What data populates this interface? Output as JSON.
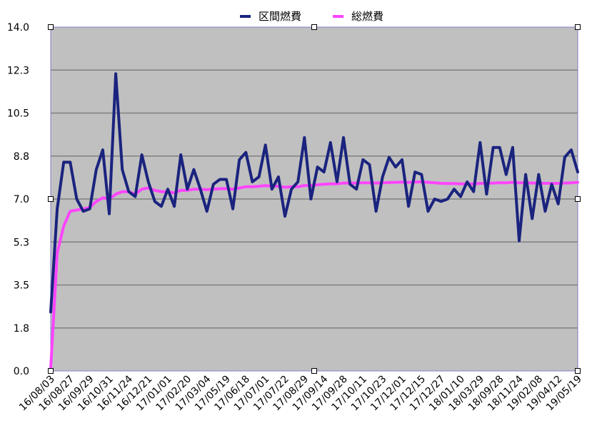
{
  "chart_data": {
    "type": "line",
    "title": "",
    "xlabel": "",
    "ylabel": "",
    "ylim": [
      0,
      14
    ],
    "y_ticks": [
      "0.0",
      "1.8",
      "3.5",
      "5.3",
      "7.0",
      "8.8",
      "10.5",
      "12.3",
      "14.0"
    ],
    "x_tick_labels": [
      "16/08/03",
      "16/08/27",
      "16/09/29",
      "16/10/31",
      "16/11/24",
      "16/12/21",
      "17/01/01",
      "17/02/20",
      "17/03/04",
      "17/05/19",
      "17/06/18",
      "17/07/01",
      "17/07/22",
      "17/08/29",
      "17/09/14",
      "17/09/28",
      "17/10/11",
      "17/10/23",
      "17/12/01",
      "17/12/15",
      "17/12/27",
      "18/01/10",
      "18/03/29",
      "18/09/28",
      "18/11/24",
      "19/02/08",
      "19/04/12",
      "19/05/19"
    ],
    "grid": true,
    "legend_position": "top",
    "colors": {
      "plot_background": "#c0c0c0",
      "gridline": "#808080",
      "axis": "#7f7fcc"
    },
    "series": [
      {
        "name": "区間燃費",
        "color": "#1a237e",
        "values": [
          2.4,
          6.6,
          8.5,
          8.5,
          7.0,
          6.5,
          6.6,
          8.2,
          9.0,
          6.4,
          12.1,
          8.2,
          7.3,
          7.1,
          8.8,
          7.7,
          6.9,
          6.7,
          7.4,
          6.7,
          8.8,
          7.4,
          8.2,
          7.4,
          6.5,
          7.6,
          7.8,
          7.8,
          6.6,
          8.6,
          8.9,
          7.7,
          7.9,
          9.2,
          7.4,
          7.9,
          6.3,
          7.4,
          7.7,
          9.5,
          7.0,
          8.3,
          8.1,
          9.3,
          7.7,
          9.5,
          7.6,
          7.4,
          8.6,
          8.4,
          6.5,
          7.9,
          8.7,
          8.3,
          8.6,
          6.7,
          8.1,
          8.0,
          6.5,
          7.0,
          6.9,
          7.0,
          7.4,
          7.1,
          7.7,
          7.3,
          9.3,
          7.2,
          9.1,
          9.1,
          8.0,
          9.1,
          5.3,
          8.0,
          6.2,
          8.0,
          6.5,
          7.6,
          6.8,
          8.7,
          9.0,
          8.1
        ]
      },
      {
        "name": "総燃費",
        "color": "#ff44ff",
        "values": [
          0.1,
          4.8,
          5.9,
          6.5,
          6.55,
          6.6,
          6.65,
          6.9,
          7.05,
          7.0,
          7.2,
          7.3,
          7.3,
          7.2,
          7.4,
          7.45,
          7.35,
          7.3,
          7.3,
          7.25,
          7.35,
          7.35,
          7.4,
          7.4,
          7.38,
          7.4,
          7.42,
          7.42,
          7.4,
          7.45,
          7.5,
          7.5,
          7.52,
          7.55,
          7.52,
          7.52,
          7.48,
          7.5,
          7.5,
          7.55,
          7.55,
          7.58,
          7.6,
          7.62,
          7.62,
          7.65,
          7.65,
          7.65,
          7.66,
          7.66,
          7.65,
          7.66,
          7.67,
          7.68,
          7.69,
          7.68,
          7.69,
          7.7,
          7.68,
          7.66,
          7.64,
          7.63,
          7.63,
          7.62,
          7.62,
          7.62,
          7.64,
          7.64,
          7.65,
          7.66,
          7.66,
          7.68,
          7.66,
          7.66,
          7.65,
          7.65,
          7.64,
          7.64,
          7.64,
          7.65,
          7.66,
          7.68
        ]
      }
    ]
  }
}
